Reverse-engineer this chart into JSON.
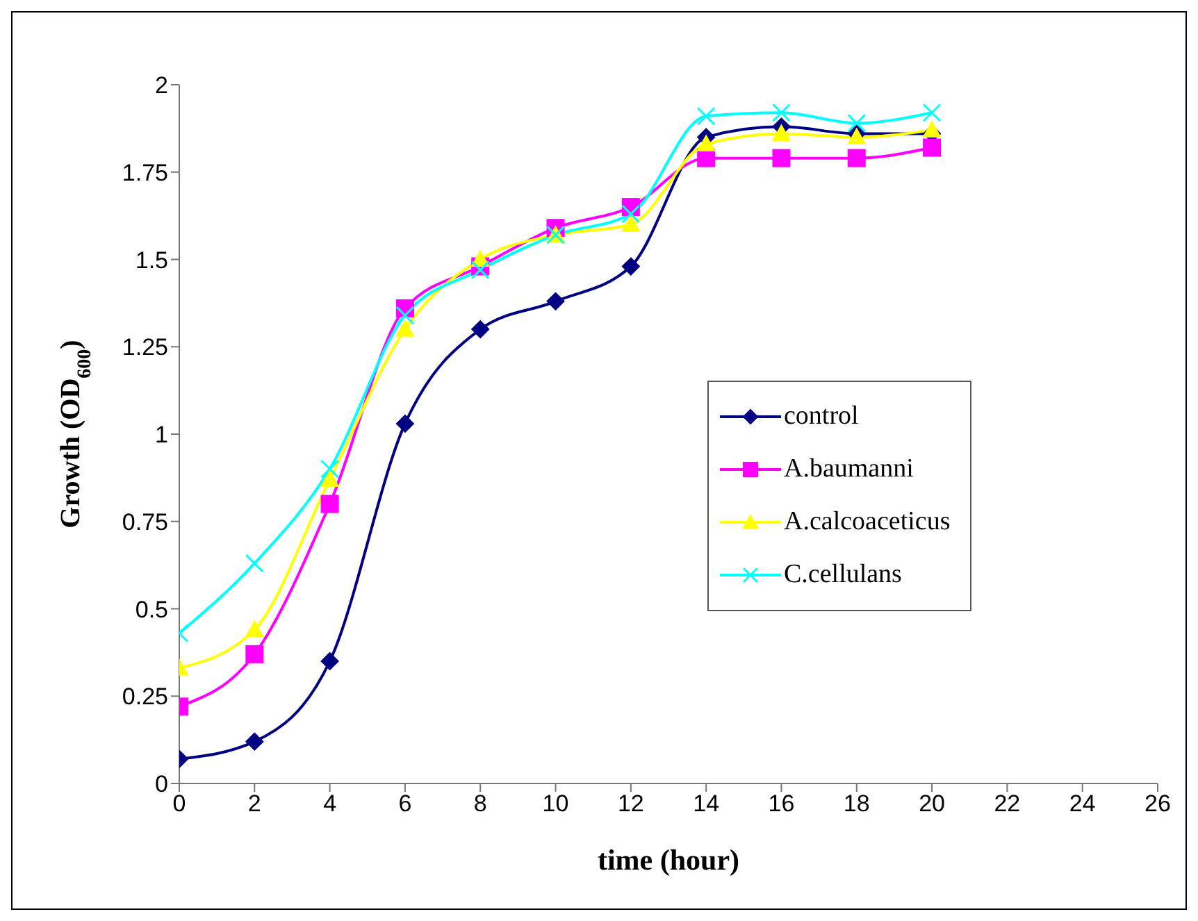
{
  "chart_data": {
    "type": "line",
    "xlabel": "time (hour)",
    "ylabel": "Growth (OD$_{600}$)",
    "x": [
      0,
      2,
      4,
      6,
      8,
      10,
      12,
      14,
      16,
      18,
      20
    ],
    "series": [
      {
        "name": "control",
        "color": "#000080",
        "marker": "diamond",
        "values": [
          0.07,
          0.12,
          0.35,
          1.03,
          1.3,
          1.38,
          1.48,
          1.85,
          1.88,
          1.86,
          1.86
        ]
      },
      {
        "name": "A.baumanni",
        "color": "#ff00ff",
        "marker": "square",
        "values": [
          0.22,
          0.37,
          0.8,
          1.36,
          1.48,
          1.59,
          1.65,
          1.79,
          1.79,
          1.79,
          1.82
        ]
      },
      {
        "name": "A.calcoaceticus",
        "color": "#ffff00",
        "marker": "triangle",
        "values": [
          0.33,
          0.44,
          0.87,
          1.3,
          1.5,
          1.57,
          1.6,
          1.83,
          1.86,
          1.85,
          1.87
        ]
      },
      {
        "name": "C.cellulans",
        "color": "#00ffff",
        "marker": "cross",
        "values": [
          0.43,
          0.63,
          0.9,
          1.34,
          1.47,
          1.57,
          1.63,
          1.91,
          1.92,
          1.89,
          1.92
        ]
      }
    ],
    "xlim": [
      0,
      26
    ],
    "xticks": [
      0,
      2,
      4,
      6,
      8,
      10,
      12,
      14,
      16,
      18,
      20,
      22,
      24,
      26
    ],
    "ylim": [
      0,
      2
    ],
    "yticks": [
      0,
      0.25,
      0.5,
      0.75,
      1,
      1.25,
      1.5,
      1.75,
      2
    ],
    "grid": false,
    "legend": "right"
  }
}
